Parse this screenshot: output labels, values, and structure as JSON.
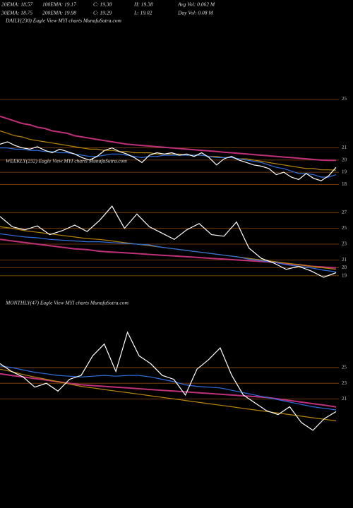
{
  "header": {
    "row1": [
      "20EMA: 18.57",
      "100EMA: 19.17",
      "C: 19.38",
      "H: 19.38",
      "Avg Vol: 0.062  M"
    ],
    "row2": [
      "30EMA: 18.75",
      "200EMA: 19.98",
      "C: 19.29",
      "L: 19.02",
      "Day Vol: 0.08  M"
    ]
  },
  "chart_data": [
    {
      "type": "line",
      "title": "DAILY(230) Eagle  View  MYI charts MunafaSutra.com",
      "ylim": [
        17.5,
        25.5
      ],
      "yticks": [
        18,
        19,
        20,
        21,
        25
      ],
      "grid": true,
      "series": [
        {
          "color": "#c0307a",
          "values": [
            23.6,
            23.4,
            23.2,
            23.0,
            22.9,
            22.7,
            22.6,
            22.4,
            22.3,
            22.2,
            22.0,
            21.9,
            21.8,
            21.7,
            21.6,
            21.5,
            21.4,
            21.3,
            21.25,
            21.2,
            21.15,
            21.1,
            21.05,
            21.0,
            20.95,
            20.9,
            20.85,
            20.8,
            20.75,
            20.7,
            20.65,
            20.6,
            20.55,
            20.5,
            20.45,
            20.4,
            20.35,
            20.3,
            20.25,
            20.2,
            20.15,
            20.1,
            20.05,
            20.0,
            19.98,
            19.98
          ]
        },
        {
          "color": "#b8860b",
          "values": [
            22.4,
            22.2,
            22.0,
            21.9,
            21.7,
            21.6,
            21.5,
            21.4,
            21.3,
            21.2,
            21.1,
            21.0,
            20.9,
            20.9,
            20.8,
            20.8,
            20.7,
            20.7,
            20.6,
            20.6,
            20.6,
            20.5,
            20.5,
            20.5,
            20.5,
            20.4,
            20.4,
            20.4,
            20.3,
            20.3,
            20.2,
            20.2,
            20.1,
            20.1,
            20.0,
            19.9,
            19.8,
            19.7,
            19.6,
            19.5,
            19.4,
            19.3,
            19.3,
            19.2,
            19.2,
            19.17
          ]
        },
        {
          "color": "#2f6fe0",
          "values": [
            21.0,
            21.0,
            20.9,
            20.9,
            20.8,
            20.8,
            20.7,
            20.7,
            20.6,
            20.6,
            20.5,
            20.4,
            20.3,
            20.3,
            20.4,
            20.5,
            20.5,
            20.4,
            20.3,
            20.2,
            20.3,
            20.3,
            20.4,
            20.4,
            20.4,
            20.4,
            20.4,
            20.4,
            20.3,
            20.2,
            20.2,
            20.2,
            20.1,
            20.0,
            19.9,
            19.8,
            19.6,
            19.4,
            19.3,
            19.1,
            18.9,
            18.9,
            18.8,
            18.6,
            18.6,
            18.8
          ]
        },
        {
          "color": "#ffffff",
          "values": [
            21.3,
            21.5,
            21.2,
            21.0,
            20.9,
            21.1,
            20.8,
            20.6,
            20.9,
            20.7,
            20.5,
            20.2,
            20.0,
            20.3,
            20.8,
            21.0,
            20.7,
            20.5,
            20.2,
            19.8,
            20.4,
            20.6,
            20.5,
            20.6,
            20.4,
            20.5,
            20.3,
            20.6,
            20.2,
            19.6,
            20.1,
            20.3,
            20.0,
            19.8,
            19.6,
            19.5,
            19.3,
            18.8,
            19.0,
            18.6,
            18.4,
            18.9,
            18.5,
            18.3,
            18.7,
            19.4
          ]
        }
      ]
    },
    {
      "type": "line",
      "title": "WEEKLY(232) Eagle  View  MYI charts MunafaSutra.com",
      "ylim": [
        18,
        28
      ],
      "yticks": [
        19,
        20,
        21,
        23,
        25,
        27
      ],
      "grid": true,
      "series": [
        {
          "color": "#c0307a",
          "values": [
            23.6,
            23.4,
            23.2,
            23.0,
            22.8,
            22.6,
            22.4,
            22.3,
            22.1,
            22.0,
            21.9,
            21.8,
            21.7,
            21.6,
            21.5,
            21.4,
            21.3,
            21.2,
            21.1,
            21.0,
            20.9,
            20.8,
            20.7,
            20.5,
            20.4,
            20.2,
            20.1,
            19.98
          ]
        },
        {
          "color": "#b8860b",
          "values": [
            25.2,
            25.0,
            24.7,
            24.5,
            24.3,
            24.1,
            23.9,
            23.7,
            23.6,
            23.4,
            23.2,
            23.0,
            22.8,
            22.6,
            22.4,
            22.2,
            22.0,
            21.8,
            21.6,
            21.4,
            21.2,
            21.0,
            20.8,
            20.6,
            20.4,
            20.2,
            20.0,
            19.8
          ]
        },
        {
          "color": "#2f6fe0",
          "values": [
            24.3,
            24.1,
            23.9,
            23.8,
            23.6,
            23.5,
            23.4,
            23.3,
            23.3,
            23.2,
            23.1,
            23.0,
            22.9,
            22.6,
            22.4,
            22.2,
            22.0,
            21.8,
            21.6,
            21.4,
            21.1,
            20.9,
            20.7,
            20.4,
            20.2,
            20.0,
            19.7,
            19.5
          ]
        },
        {
          "color": "#ffffff",
          "values": [
            26.5,
            25.2,
            24.8,
            25.3,
            24.2,
            24.7,
            25.4,
            24.6,
            26.0,
            27.8,
            25.0,
            26.8,
            25.2,
            24.4,
            23.6,
            24.8,
            25.6,
            24.2,
            24.0,
            25.8,
            22.5,
            21.2,
            20.6,
            19.8,
            20.2,
            19.6,
            18.8,
            19.38
          ]
        }
      ]
    },
    {
      "type": "line",
      "title": "MONTHLY(47) Eagle  View  MYI charts MunafaSutra.com",
      "ylim": [
        16,
        33
      ],
      "yticks": [
        21,
        23,
        25
      ],
      "grid": true,
      "series": [
        {
          "color": "#c0307a",
          "values": [
            24.2,
            24.0,
            23.8,
            23.6,
            23.4,
            23.2,
            23.0,
            22.8,
            22.7,
            22.6,
            22.5,
            22.4,
            22.3,
            22.2,
            22.1,
            22.0,
            21.9,
            21.8,
            21.7,
            21.6,
            21.5,
            21.4,
            21.3,
            21.2,
            21.0,
            20.8,
            20.6,
            20.4,
            20.2,
            19.98
          ]
        },
        {
          "color": "#b8860b",
          "values": [
            24.8,
            24.5,
            24.1,
            23.8,
            23.5,
            23.2,
            22.9,
            22.6,
            22.4,
            22.2,
            22.0,
            21.8,
            21.6,
            21.4,
            21.2,
            21.0,
            20.8,
            20.6,
            20.4,
            20.2,
            20.0,
            19.8,
            19.6,
            19.4,
            19.2,
            19.0,
            18.8,
            18.6,
            18.4,
            18.2
          ]
        },
        {
          "color": "#2f6fe0",
          "values": [
            25.2,
            25.0,
            24.7,
            24.4,
            24.2,
            24.0,
            23.9,
            23.8,
            23.9,
            24.0,
            23.9,
            24.0,
            24.0,
            23.8,
            23.5,
            23.2,
            22.8,
            22.6,
            22.5,
            22.4,
            22.1,
            21.8,
            21.5,
            21.2,
            20.9,
            20.6,
            20.3,
            20.0,
            19.8,
            19.6
          ]
        },
        {
          "color": "#ffffff",
          "values": [
            25.5,
            24.5,
            23.8,
            22.5,
            23.0,
            22.0,
            23.5,
            24.0,
            26.5,
            28.0,
            24.5,
            29.5,
            26.5,
            25.5,
            24.0,
            23.5,
            21.5,
            24.8,
            26.0,
            27.5,
            24.0,
            21.5,
            20.5,
            19.5,
            19.0,
            20.0,
            18.0,
            17.0,
            18.5,
            19.38
          ]
        }
      ]
    }
  ]
}
